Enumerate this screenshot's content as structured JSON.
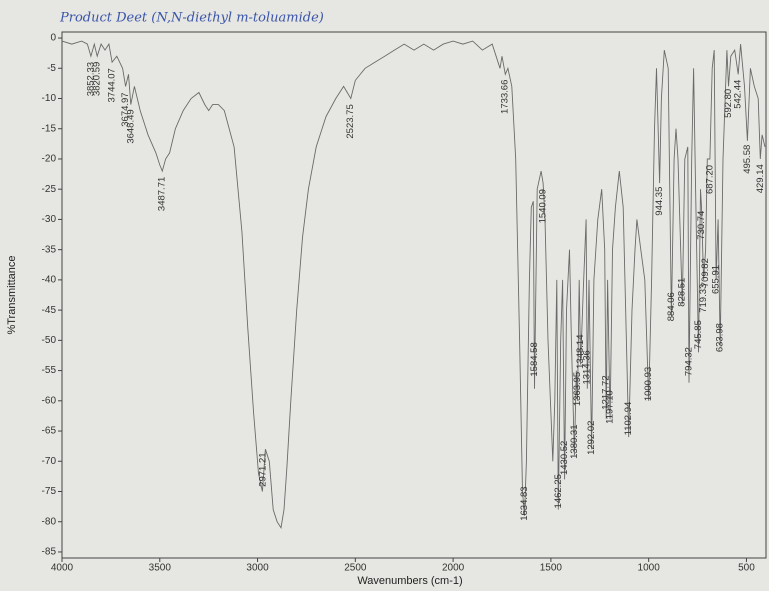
{
  "chart_data": {
    "type": "line",
    "title": "Product Deet (N,N-diethyl m-toluamide)",
    "x_label": "Wavenumbers (cm-1)",
    "y_label": "%Transmittance",
    "xlim": [
      4000,
      400
    ],
    "ylim": [
      -86,
      1
    ],
    "xticks": [
      4000,
      3500,
      3000,
      2500,
      2000,
      1500,
      1000,
      500
    ],
    "yticks": [
      0,
      -5,
      -10,
      -15,
      -20,
      -25,
      -30,
      -35,
      -40,
      -45,
      -50,
      -55,
      -60,
      -65,
      -70,
      -75,
      -80,
      -85
    ],
    "series": [
      {
        "color": "#6a6a6a",
        "x": [
          4000,
          3950,
          3900,
          3870,
          3852,
          3835,
          3820,
          3800,
          3780,
          3760,
          3744,
          3720,
          3690,
          3675,
          3660,
          3648,
          3630,
          3600,
          3560,
          3520,
          3500,
          3487,
          3470,
          3450,
          3420,
          3380,
          3340,
          3300,
          3270,
          3250,
          3230,
          3200,
          3170,
          3120,
          3080,
          3050,
          3020,
          2995,
          2975,
          2960,
          2940,
          2920,
          2900,
          2880,
          2865,
          2850,
          2830,
          2800,
          2770,
          2740,
          2700,
          2650,
          2600,
          2560,
          2523,
          2500,
          2450,
          2400,
          2350,
          2300,
          2250,
          2200,
          2150,
          2100,
          2050,
          2000,
          1950,
          1900,
          1850,
          1800,
          1780,
          1760,
          1750,
          1733,
          1720,
          1700,
          1680,
          1660,
          1645,
          1635,
          1625,
          1610,
          1600,
          1590,
          1584,
          1570,
          1550,
          1540,
          1530,
          1515,
          1500,
          1490,
          1480,
          1470,
          1462,
          1450,
          1440,
          1430,
          1420,
          1405,
          1395,
          1380,
          1370,
          1364,
          1355,
          1348,
          1335,
          1320,
          1314,
          1305,
          1292,
          1280,
          1260,
          1240,
          1225,
          1217,
          1210,
          1197,
          1185,
          1170,
          1150,
          1130,
          1102,
          1085,
          1070,
          1060,
          1040,
          1020,
          1000,
          985,
          970,
          960,
          944,
          935,
          920,
          900,
          884,
          870,
          860,
          850,
          828,
          815,
          800,
          794,
          780,
          770,
          760,
          745,
          735,
          730,
          719,
          709,
          700,
          687,
          675,
          665,
          655,
          645,
          634,
          620,
          600,
          592,
          580,
          560,
          542,
          530,
          510,
          495,
          480,
          460,
          440,
          429,
          420,
          405
        ],
        "values": [
          -0.5,
          -1,
          -0.5,
          -1,
          -3,
          -1,
          -3,
          -1,
          -2,
          -1,
          -4,
          -3,
          -5,
          -8,
          -6,
          -11,
          -8,
          -12,
          -16,
          -19,
          -21,
          -22,
          -20,
          -19,
          -15,
          -12,
          -10,
          -9,
          -11,
          -12,
          -11,
          -11,
          -12,
          -18,
          -32,
          -48,
          -62,
          -72,
          -75,
          -68,
          -70,
          -78,
          -80,
          -81,
          -78,
          -71,
          -60,
          -45,
          -33,
          -25,
          -18,
          -13,
          -10,
          -8,
          -10,
          -7,
          -5,
          -4,
          -3,
          -2,
          -1,
          -2,
          -1,
          -2,
          -1,
          -0.5,
          -1,
          -0.5,
          -2,
          -1,
          -3,
          -5,
          -3,
          -6,
          -5,
          -8,
          -20,
          -50,
          -75,
          -79,
          -70,
          -40,
          -28,
          -27,
          -58,
          -25,
          -22,
          -24,
          -30,
          -50,
          -62,
          -70,
          -60,
          -40,
          -78,
          -50,
          -40,
          -73,
          -45,
          -35,
          -50,
          -69,
          -55,
          -60,
          -40,
          -54,
          -42,
          -30,
          -58,
          -40,
          -68,
          -40,
          -30,
          -25,
          -35,
          -63,
          -40,
          -63,
          -35,
          -28,
          -22,
          -28,
          -66,
          -45,
          -35,
          -30,
          -35,
          -40,
          -60,
          -40,
          -15,
          -5,
          -24,
          -10,
          -2,
          -5,
          -46,
          -20,
          -15,
          -20,
          -44,
          -20,
          -18,
          -57,
          -20,
          -5,
          -25,
          -52,
          -25,
          -28,
          -40,
          -35,
          -20,
          -20,
          -5,
          -2,
          -40,
          -30,
          -51,
          -20,
          -2,
          -8,
          -3,
          -2,
          -6,
          -1,
          -8,
          -17,
          -5,
          -8,
          -10,
          -20,
          -16,
          -18
        ]
      }
    ],
    "peaks": [
      {
        "x": 3852.33,
        "label": "3852.33"
      },
      {
        "x": 3820.59,
        "label": "3820.59"
      },
      {
        "x": 3744.07,
        "label": "3744.07"
      },
      {
        "x": 3674.97,
        "label": "3674.97"
      },
      {
        "x": 3648.49,
        "label": "3648.49"
      },
      {
        "x": 3487.71,
        "label": "3487.71"
      },
      {
        "x": 2971.21,
        "label": "2971.21"
      },
      {
        "x": 2523.75,
        "label": "2523.75"
      },
      {
        "x": 1733.66,
        "label": "1733.66"
      },
      {
        "x": 1634.83,
        "label": "1634.83"
      },
      {
        "x": 1584.58,
        "label": "1584.58"
      },
      {
        "x": 1540.09,
        "label": "1540.09"
      },
      {
        "x": 1462.25,
        "label": "1462.25"
      },
      {
        "x": 1430.52,
        "label": "1430.52"
      },
      {
        "x": 1380.31,
        "label": "1380.31"
      },
      {
        "x": 1363.95,
        "label": "1363.95"
      },
      {
        "x": 1348.14,
        "label": "1348.14"
      },
      {
        "x": 1314.36,
        "label": "1314.36"
      },
      {
        "x": 1292.02,
        "label": "1292.02"
      },
      {
        "x": 1217.72,
        "label": "1217.72"
      },
      {
        "x": 1197.1,
        "label": "1197.10"
      },
      {
        "x": 1102.94,
        "label": "1102.94"
      },
      {
        "x": 1000.93,
        "label": "1000.93"
      },
      {
        "x": 944.35,
        "label": "944.35"
      },
      {
        "x": 884.06,
        "label": "884.06"
      },
      {
        "x": 828.51,
        "label": "828.51"
      },
      {
        "x": 794.32,
        "label": "794.32"
      },
      {
        "x": 745.85,
        "label": "745.85"
      },
      {
        "x": 730.74,
        "label": "730.74"
      },
      {
        "x": 719.33,
        "label": "719.33"
      },
      {
        "x": 709.82,
        "label": "709.82"
      },
      {
        "x": 687.2,
        "label": "687.20"
      },
      {
        "x": 655.91,
        "label": "655.91"
      },
      {
        "x": 633.98,
        "label": "633.98"
      },
      {
        "x": 592.8,
        "label": "592.80"
      },
      {
        "x": 542.44,
        "label": "542.44"
      },
      {
        "x": 495.58,
        "label": "495.58"
      },
      {
        "x": 429.14,
        "label": "429.14"
      }
    ]
  }
}
